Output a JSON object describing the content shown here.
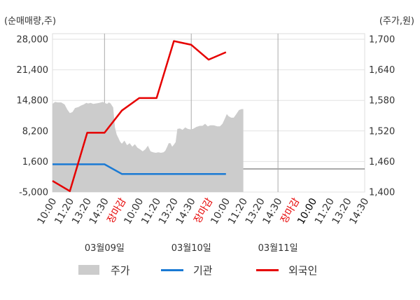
{
  "chart_data": {
    "type": "line",
    "left_axis_unit": "(순매매량,주)",
    "right_axis_unit": "(주가,원)",
    "left_ticks": [
      "28,000",
      "21,400",
      "14,800",
      "8,200",
      "1,600",
      "-5,000"
    ],
    "right_ticks": [
      "1,700",
      "1,640",
      "1,580",
      "1,520",
      "1,460",
      "1,400"
    ],
    "left_range": [
      -5000,
      28000
    ],
    "right_range": [
      1400,
      1700
    ],
    "x_ticks": [
      {
        "label": "10:00",
        "color": "#333333"
      },
      {
        "label": "11:20",
        "color": "#333333"
      },
      {
        "label": "13:20",
        "color": "#333333"
      },
      {
        "label": "14:30",
        "color": "#333333"
      },
      {
        "label": "장마감",
        "color": "#e60000"
      },
      {
        "label": "10:00",
        "color": "#333333"
      },
      {
        "label": "11:20",
        "color": "#333333"
      },
      {
        "label": "13:20",
        "color": "#333333"
      },
      {
        "label": "14:30",
        "color": "#333333"
      },
      {
        "label": "장마감",
        "color": "#e60000"
      },
      {
        "label": "10:00",
        "color": "#333333"
      },
      {
        "label": "11:20",
        "color": "#333333"
      },
      {
        "label": "13:20",
        "color": "#333333"
      },
      {
        "label": "14:30",
        "color": "#333333"
      },
      {
        "label": "장마감",
        "color": "#e60000"
      },
      {
        "label": "10:00",
        "color": "#000000"
      },
      {
        "label": "11:20",
        "color": "#333333"
      },
      {
        "label": "13:20",
        "color": "#333333"
      },
      {
        "label": "14:30",
        "color": "#333333"
      }
    ],
    "dates": [
      {
        "label": "03월09일",
        "tick_index": 3
      },
      {
        "label": "03월10일",
        "tick_index": 8
      },
      {
        "label": "03월11일",
        "tick_index": 13
      }
    ],
    "series": [
      {
        "name": "주가",
        "kind": "area",
        "axis": "right",
        "color": "#cccccc",
        "points": [
          [
            0,
            1573
          ],
          [
            0.15,
            1577
          ],
          [
            0.3,
            1576
          ],
          [
            0.5,
            1576
          ],
          [
            0.7,
            1572
          ],
          [
            0.85,
            1562
          ],
          [
            1.0,
            1555
          ],
          [
            1.15,
            1557
          ],
          [
            1.3,
            1565
          ],
          [
            1.5,
            1567
          ],
          [
            1.65,
            1570
          ],
          [
            1.8,
            1572
          ],
          [
            1.95,
            1575
          ],
          [
            2.05,
            1574
          ],
          [
            2.2,
            1575
          ],
          [
            2.35,
            1573
          ],
          [
            2.5,
            1574
          ],
          [
            2.7,
            1575
          ],
          [
            2.9,
            1577
          ],
          [
            3.0,
            1575
          ],
          [
            3.15,
            1573
          ],
          [
            3.25,
            1576
          ],
          [
            3.35,
            1574
          ],
          [
            3.5,
            1566
          ],
          [
            3.6,
            1527
          ],
          [
            3.7,
            1513
          ],
          [
            3.8,
            1506
          ],
          [
            3.9,
            1499
          ],
          [
            4.0,
            1495
          ],
          [
            4.15,
            1501
          ],
          [
            4.3,
            1492
          ],
          [
            4.45,
            1496
          ],
          [
            4.6,
            1489
          ],
          [
            4.75,
            1494
          ],
          [
            4.9,
            1487
          ],
          [
            5.05,
            1484
          ],
          [
            5.2,
            1480
          ],
          [
            5.35,
            1484
          ],
          [
            5.5,
            1491
          ],
          [
            5.65,
            1480
          ],
          [
            5.8,
            1478
          ],
          [
            5.95,
            1477
          ],
          [
            6.1,
            1478
          ],
          [
            6.25,
            1477
          ],
          [
            6.4,
            1478
          ],
          [
            6.5,
            1481
          ],
          [
            6.6,
            1488
          ],
          [
            6.7,
            1496
          ],
          [
            6.8,
            1496
          ],
          [
            6.9,
            1489
          ],
          [
            7.0,
            1493
          ],
          [
            7.1,
            1498
          ],
          [
            7.2,
            1524
          ],
          [
            7.35,
            1525
          ],
          [
            7.5,
            1522
          ],
          [
            7.65,
            1527
          ],
          [
            7.8,
            1524
          ],
          [
            7.95,
            1523
          ],
          [
            8.1,
            1524
          ],
          [
            8.3,
            1528
          ],
          [
            8.5,
            1530
          ],
          [
            8.65,
            1530
          ],
          [
            8.8,
            1534
          ],
          [
            8.95,
            1529
          ],
          [
            9.1,
            1531
          ],
          [
            9.3,
            1531
          ],
          [
            9.5,
            1529
          ],
          [
            9.65,
            1529
          ],
          [
            9.8,
            1534
          ],
          [
            9.95,
            1545
          ],
          [
            10.05,
            1553
          ],
          [
            10.15,
            1549
          ],
          [
            10.3,
            1546
          ],
          [
            10.45,
            1546
          ],
          [
            10.6,
            1553
          ],
          [
            10.75,
            1561
          ],
          [
            10.9,
            1563
          ],
          [
            11.0,
            1563
          ]
        ]
      },
      {
        "name": "기관",
        "kind": "line",
        "axis": "left",
        "color": "#1a7ad4",
        "points": [
          [
            0,
            1000
          ],
          [
            1,
            1000
          ],
          [
            2,
            1000
          ],
          [
            3,
            1000
          ],
          [
            4,
            -1100
          ],
          [
            5,
            -1100
          ],
          [
            6,
            -1100
          ],
          [
            7,
            -1100
          ],
          [
            8,
            -1100
          ],
          [
            9,
            -1100
          ],
          [
            10,
            -1100
          ]
        ]
      },
      {
        "name": "외국인",
        "kind": "line",
        "axis": "left",
        "color": "#e60000",
        "points": [
          [
            0,
            -2600
          ],
          [
            1,
            -4800
          ],
          [
            2,
            7800
          ],
          [
            3,
            7800
          ],
          [
            4,
            12600
          ],
          [
            5,
            15300
          ],
          [
            6,
            15300
          ],
          [
            7,
            27600
          ],
          [
            8,
            26800
          ],
          [
            9,
            23600
          ],
          [
            10,
            25200
          ]
        ]
      }
    ],
    "legend": [
      "주가",
      "기관",
      "외국인"
    ],
    "grid": true
  }
}
